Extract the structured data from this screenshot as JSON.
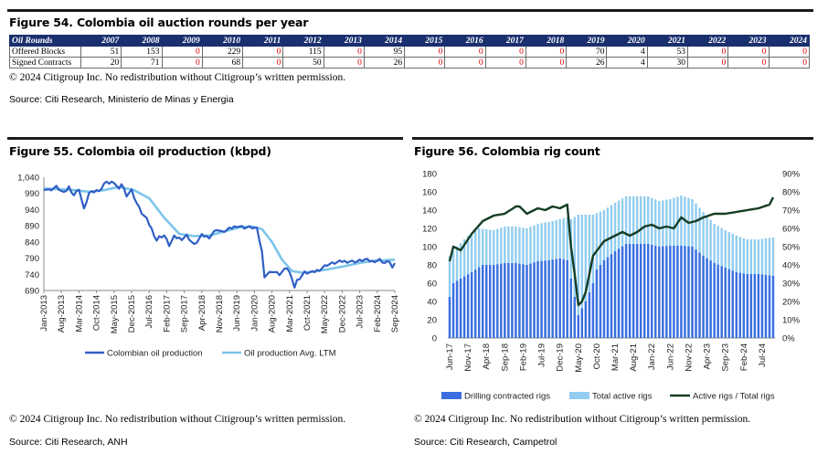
{
  "fig54": {
    "title": "Figure 54. Colombia oil auction rounds per year",
    "corner_label": "Oil Rounds",
    "years": [
      "2007",
      "2008",
      "2009",
      "2010",
      "2011",
      "2012",
      "2013",
      "2014",
      "2015",
      "2016",
      "2017",
      "2018",
      "2019",
      "2020",
      "2021",
      "2022",
      "2023",
      "2024"
    ],
    "rows": [
      {
        "label": "Offered Blocks",
        "values": [
          51,
          153,
          0,
          229,
          0,
          115,
          0,
          95,
          0,
          0,
          0,
          0,
          70,
          4,
          53,
          0,
          0,
          0
        ]
      },
      {
        "label": "Signed Contracts",
        "values": [
          20,
          71,
          0,
          68,
          0,
          50,
          0,
          26,
          0,
          0,
          0,
          0,
          26,
          4,
          30,
          0,
          0,
          0
        ]
      }
    ],
    "copyright": "© 2024 Citigroup Inc. No redistribution without Citigroup’s written permission.",
    "source": "Source: Citi Research, Ministerio de Minas y Energia"
  },
  "fig55": {
    "title": "Figure 55. Colombia oil production (kbpd)",
    "copyright": "© 2024 Citigroup Inc. No redistribution without Citigroup’s written permission.",
    "source": "Source: Citi Research, ANH"
  },
  "fig56": {
    "title": "Figure 56. Colombia rig count",
    "copyright": "© 2024 Citigroup Inc. No redistribution without Citigroup’s written permission.",
    "source": "Source: Citi Research, Campetrol"
  },
  "colors": {
    "navy": "#1a2f6e",
    "blue": "#2f5fc4",
    "light_blue": "#7cc4ea",
    "dark_green": "#143d24",
    "drilling_blue": "#3a6ee0",
    "total_blue": "#92cdf0",
    "zero_red": "#e00000"
  },
  "chart_data": [
    {
      "type": "line",
      "title": "Figure 55. Colombia oil production (kbpd)",
      "ylim": [
        690,
        1040
      ],
      "yticks": [
        690,
        740,
        790,
        840,
        890,
        940,
        990,
        1040
      ],
      "ytick_labels": [
        "690",
        "740",
        "790",
        "840",
        "890",
        "940",
        "990",
        "1,040"
      ],
      "xtick_labels": [
        "Jan-2013",
        "Aug-2013",
        "Mar-2014",
        "Oct-2014",
        "May-2015",
        "Dec-2015",
        "Jul-2016",
        "Feb-2017",
        "Sep-2017",
        "Apr-2018",
        "Nov-2018",
        "Jun-2019",
        "Jan-2020",
        "Aug-2020",
        "Mar-2021",
        "Oct-2021",
        "May-2022",
        "Dec-2022",
        "Jul-2023",
        "Feb-2024",
        "Sep-2024"
      ],
      "x_start": "2013-01",
      "x_end": "2024-09",
      "legend_position": "bottom",
      "series": [
        {
          "name": "Colombian oil production",
          "x": [
            "2013-01",
            "2013-03",
            "2013-06",
            "2013-09",
            "2013-11",
            "2014-01",
            "2014-03",
            "2014-05",
            "2014-07",
            "2014-09",
            "2014-12",
            "2015-02",
            "2015-03",
            "2015-05",
            "2015-07",
            "2015-08",
            "2015-10",
            "2015-12",
            "2016-02",
            "2016-04",
            "2016-06",
            "2016-08",
            "2016-10",
            "2016-11",
            "2017-01",
            "2017-03",
            "2017-05",
            "2017-08",
            "2017-10",
            "2018-01",
            "2018-04",
            "2018-07",
            "2018-10",
            "2018-12",
            "2019-03",
            "2019-06",
            "2019-09",
            "2019-12",
            "2020-02",
            "2020-04",
            "2020-05",
            "2020-08",
            "2020-11",
            "2021-02",
            "2021-04",
            "2021-05",
            "2021-06",
            "2021-09",
            "2021-12",
            "2022-03",
            "2022-06",
            "2022-09",
            "2022-12",
            "2023-03",
            "2023-06",
            "2023-09",
            "2023-12",
            "2024-03",
            "2024-05",
            "2024-07",
            "2024-08",
            "2024-09"
          ],
          "values": [
            1005,
            1000,
            1010,
            990,
            1010,
            985,
            1005,
            940,
            990,
            995,
            1005,
            1030,
            1020,
            1025,
            1000,
            1020,
            985,
            1000,
            960,
            930,
            910,
            880,
            845,
            855,
            860,
            830,
            855,
            850,
            860,
            830,
            860,
            855,
            880,
            870,
            880,
            890,
            885,
            885,
            880,
            810,
            735,
            750,
            740,
            760,
            730,
            700,
            720,
            745,
            745,
            755,
            770,
            775,
            780,
            780,
            780,
            785,
            780,
            785,
            775,
            780,
            760,
            770
          ]
        },
        {
          "name": "Oil production Avg. LTM",
          "x": [
            "2013-01",
            "2013-07",
            "2014-01",
            "2014-07",
            "2015-01",
            "2015-07",
            "2016-01",
            "2016-07",
            "2017-01",
            "2017-07",
            "2018-01",
            "2018-07",
            "2019-01",
            "2019-07",
            "2019-12",
            "2020-04",
            "2020-08",
            "2020-12",
            "2021-04",
            "2021-08",
            "2021-12",
            "2022-06",
            "2023-01",
            "2023-07",
            "2024-01",
            "2024-09"
          ],
          "values": [
            1005,
            1003,
            1000,
            995,
            1000,
            1010,
            1000,
            975,
            915,
            865,
            858,
            860,
            872,
            885,
            888,
            880,
            840,
            785,
            750,
            745,
            748,
            755,
            765,
            775,
            782,
            785
          ]
        }
      ]
    },
    {
      "type": "bar",
      "title": "Figure 56. Colombia rig count",
      "ylim": [
        0,
        180
      ],
      "yticks": [
        0,
        20,
        40,
        60,
        80,
        100,
        120,
        140,
        160,
        180
      ],
      "y2lim": [
        0,
        90
      ],
      "y2ticks": [
        "0%",
        "10%",
        "20%",
        "30%",
        "40%",
        "50%",
        "60%",
        "70%",
        "80%",
        "90%"
      ],
      "xtick_labels": [
        "Jun-17",
        "Nov-17",
        "Apr-18",
        "Sep-18",
        "Feb-19",
        "Jul-19",
        "Dec-19",
        "May-20",
        "Oct-20",
        "Mar-21",
        "Aug-21",
        "Jan-22",
        "Jun-22",
        "Nov-22",
        "Apr-23",
        "Sep-23",
        "Feb-24",
        "Jul-24"
      ],
      "x_start": "2017-06",
      "x_end": "2024-10",
      "legend_position": "bottom",
      "series": [
        {
          "name": "Drilling contracted rigs",
          "axis": "left",
          "x": [
            "2017-06",
            "2017-07",
            "2017-09",
            "2017-12",
            "2018-03",
            "2018-06",
            "2018-09",
            "2018-12",
            "2019-03",
            "2019-06",
            "2019-09",
            "2019-12",
            "2020-02",
            "2020-03",
            "2020-05",
            "2020-07",
            "2020-09",
            "2020-10",
            "2020-12",
            "2021-03",
            "2021-06",
            "2021-09",
            "2021-12",
            "2022-03",
            "2022-06",
            "2022-09",
            "2022-12",
            "2023-03",
            "2023-06",
            "2023-09",
            "2023-12",
            "2024-03",
            "2024-06",
            "2024-10"
          ],
          "values": [
            45,
            60,
            65,
            72,
            80,
            80,
            82,
            82,
            80,
            84,
            85,
            87,
            85,
            65,
            25,
            40,
            60,
            75,
            85,
            95,
            103,
            103,
            103,
            100,
            101,
            101,
            100,
            90,
            82,
            77,
            72,
            70,
            70,
            68
          ]
        },
        {
          "name": "Total active rigs",
          "axis": "left",
          "x": [
            "2017-06",
            "2017-08",
            "2017-11",
            "2018-02",
            "2018-06",
            "2018-09",
            "2018-12",
            "2019-03",
            "2019-06",
            "2019-09",
            "2019-12",
            "2020-02",
            "2020-03",
            "2020-05",
            "2020-07",
            "2020-09",
            "2020-12",
            "2021-03",
            "2021-06",
            "2021-09",
            "2021-12",
            "2022-03",
            "2022-06",
            "2022-09",
            "2022-12",
            "2023-03",
            "2023-06",
            "2023-09",
            "2023-12",
            "2024-03",
            "2024-06",
            "2024-10"
          ],
          "values": [
            90,
            100,
            112,
            120,
            118,
            122,
            122,
            120,
            125,
            127,
            130,
            132,
            130,
            135,
            135,
            135,
            140,
            148,
            155,
            155,
            155,
            150,
            152,
            156,
            152,
            138,
            125,
            118,
            112,
            108,
            108,
            110
          ]
        },
        {
          "name": "Active rigs / Total rigs",
          "axis": "right",
          "x": [
            "2017-06",
            "2017-07",
            "2017-09",
            "2017-12",
            "2018-03",
            "2018-06",
            "2018-09",
            "2018-12",
            "2019-01",
            "2019-03",
            "2019-06",
            "2019-08",
            "2019-10",
            "2019-12",
            "2020-02",
            "2020-03",
            "2020-04",
            "2020-05",
            "2020-06",
            "2020-07",
            "2020-09",
            "2020-12",
            "2021-03",
            "2021-05",
            "2021-07",
            "2021-09",
            "2021-11",
            "2022-01",
            "2022-03",
            "2022-05",
            "2022-07",
            "2022-09",
            "2022-11",
            "2023-01",
            "2023-03",
            "2023-06",
            "2023-09",
            "2023-12",
            "2024-03",
            "2024-06",
            "2024-09",
            "2024-10"
          ],
          "values": [
            42,
            50,
            48,
            57,
            64,
            67,
            68,
            72,
            72,
            68,
            71,
            70,
            72,
            71,
            73,
            50,
            35,
            18,
            20,
            25,
            45,
            53,
            56,
            58,
            56,
            58,
            61,
            62,
            60,
            61,
            60,
            66,
            63,
            64,
            66,
            68,
            68,
            69,
            70,
            71,
            73,
            77
          ]
        }
      ]
    }
  ]
}
